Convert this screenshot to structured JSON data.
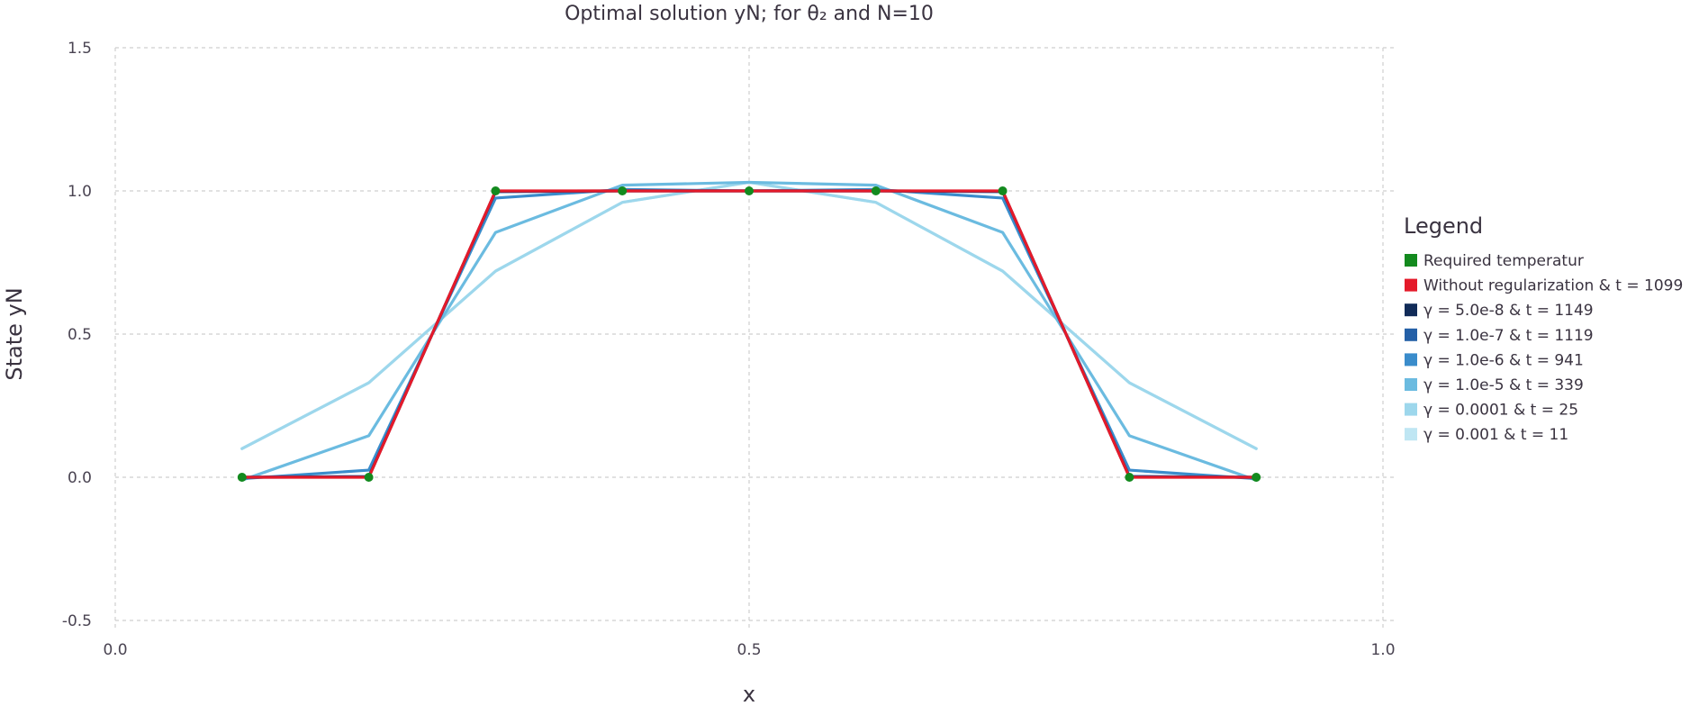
{
  "chart_data": {
    "type": "line",
    "title": "Optimal solution yN; for θ₂ and N=10",
    "xlabel": "x",
    "ylabel": "State yN",
    "xlim": [
      0.0,
      1.0
    ],
    "ylim": [
      -0.5,
      1.5
    ],
    "xticks": [
      0.0,
      0.5,
      1.0
    ],
    "xtick_labels": [
      "0.0",
      "0.5",
      "1.0"
    ],
    "yticks": [
      -0.5,
      0.0,
      0.5,
      1.0,
      1.5
    ],
    "ytick_labels": [
      "-0.5",
      "0.0",
      "0.5",
      "1.0",
      "1.5"
    ],
    "grid": true,
    "legend": {
      "title": "Legend",
      "placement": "right"
    },
    "x": [
      0.1,
      0.2,
      0.3,
      0.4,
      0.5,
      0.6,
      0.7,
      0.8,
      0.9
    ],
    "series": [
      {
        "name": "γ = 0.001 & t = 11",
        "color": "#bfe6f3",
        "kind": "line",
        "values": [
          0.1,
          0.33,
          0.72,
          0.96,
          1.03,
          0.96,
          0.72,
          0.33,
          0.1
        ]
      },
      {
        "name": "γ = 0.0001 & t = 25",
        "color": "#9dd7ec",
        "kind": "line",
        "values": [
          0.1,
          0.33,
          0.72,
          0.96,
          1.03,
          0.96,
          0.72,
          0.33,
          0.1
        ]
      },
      {
        "name": "γ = 1.0e-5 & t = 339",
        "color": "#6bbbe0",
        "kind": "line",
        "values": [
          -0.01,
          0.145,
          0.855,
          1.02,
          1.03,
          1.02,
          0.855,
          0.145,
          -0.01
        ]
      },
      {
        "name": "γ = 1.0e-6 & t = 941",
        "color": "#3a8ccb",
        "kind": "line",
        "values": [
          -0.005,
          0.025,
          0.975,
          1.005,
          1.0,
          1.005,
          0.975,
          0.025,
          -0.005
        ]
      },
      {
        "name": "γ = 1.0e-7 & t = 1119",
        "color": "#2460a7",
        "kind": "line",
        "values": [
          0.0,
          0.003,
          0.997,
          1.0,
          1.0,
          1.0,
          0.997,
          0.003,
          0.0
        ]
      },
      {
        "name": "γ = 5.0e-8 & t = 1149",
        "color": "#112b58",
        "kind": "line",
        "values": [
          0.0,
          0.001,
          0.999,
          1.0,
          1.0,
          1.0,
          0.999,
          0.001,
          0.0
        ]
      },
      {
        "name": "Without regularization & t = 1099",
        "color": "#e41a2a",
        "kind": "line",
        "values": [
          0.0,
          0.0,
          1.0,
          1.0,
          1.0,
          1.0,
          1.0,
          0.0,
          0.0
        ]
      },
      {
        "name": "Required temperatur",
        "color": "#138a1e",
        "kind": "points",
        "values": [
          0.0,
          0.0,
          1.0,
          1.0,
          1.0,
          1.0,
          1.0,
          0.0,
          0.0
        ]
      }
    ],
    "legend_order": [
      "Required temperatur",
      "Without regularization & t = 1099",
      "γ = 5.0e-8 & t = 1149",
      "γ = 1.0e-7 & t = 1119",
      "γ = 1.0e-6 & t = 941",
      "γ = 1.0e-5 & t = 339",
      "γ = 0.0001 & t = 25",
      "γ = 0.001 & t = 11"
    ]
  }
}
